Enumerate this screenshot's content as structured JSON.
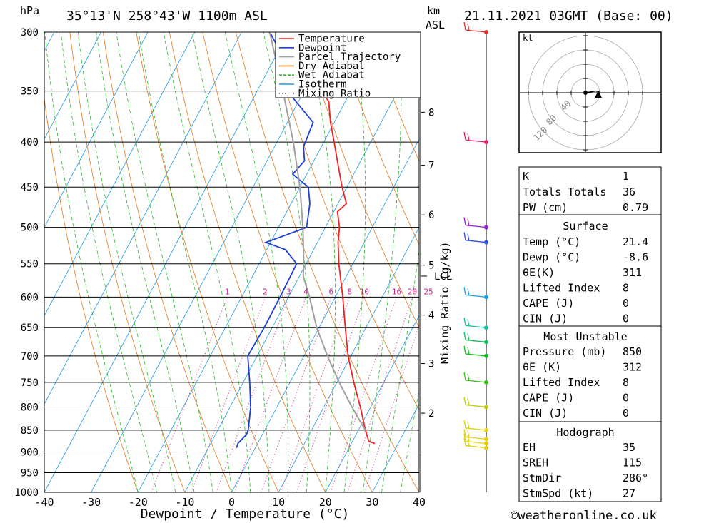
{
  "header": {
    "unit_left": "hPa",
    "location": "35°13'N 258°43'W 1100m ASL",
    "unit_km": "km",
    "unit_asl": "ASL",
    "datetime": "21.11.2021 03GMT (Base: 00)"
  },
  "chart_data": {
    "type": "line",
    "title": "35°13'N 258°43'W 1100m ASL",
    "xlabel": "Dewpoint / Temperature (°C)",
    "ylabel": "hPa",
    "xlim": [
      -40,
      40
    ],
    "ylim": [
      1000,
      300
    ],
    "y_scale": "log",
    "skew": true,
    "x_ticks": [
      "-40",
      "-30",
      "-20",
      "-10",
      "0",
      "10",
      "20",
      "30",
      "40"
    ],
    "pressure_ticks": [
      "300",
      "350",
      "400",
      "450",
      "500",
      "550",
      "600",
      "650",
      "700",
      "750",
      "800",
      "850",
      "900",
      "950",
      "1000"
    ],
    "km_ticks": [
      {
        "label": "2",
        "p": 813
      },
      {
        "label": "3",
        "p": 714
      },
      {
        "label": "4",
        "p": 629
      },
      {
        "label": "5",
        "p": 552
      },
      {
        "label": "6",
        "p": 484
      },
      {
        "label": "7",
        "p": 425
      },
      {
        "label": "8",
        "p": 370
      }
    ],
    "lcl": {
      "label": "LCL",
      "p": 568
    },
    "mixing_ratio_label": "Mixing Ratio (g/kg)",
    "mixing_ratio_values": [
      "1",
      "2",
      "3",
      "4",
      "6",
      "8",
      "10",
      "16",
      "20",
      "25"
    ],
    "legend": {
      "placement": "top-right",
      "entries": [
        {
          "name": "Temperature",
          "color": "#ee2222",
          "style": "solid"
        },
        {
          "name": "Dewpoint",
          "color": "#1f3fcf",
          "style": "solid"
        },
        {
          "name": "Parcel Trajectory",
          "color": "#a0a0a0",
          "style": "solid"
        },
        {
          "name": "Dry Adiabat",
          "color": "#e07a1f",
          "style": "solid"
        },
        {
          "name": "Wet Adiabat",
          "color": "#2fb82f",
          "style": "dashed"
        },
        {
          "name": "Isotherm",
          "color": "#1e9be0",
          "style": "solid"
        },
        {
          "name": "Mixing Ratio",
          "color": "#d02090",
          "style": "dotted"
        }
      ]
    },
    "series": [
      {
        "name": "Temperature",
        "color": "#ee2222",
        "points": [
          [
            880,
            25.0
          ],
          [
            875,
            23.5
          ],
          [
            850,
            21.5
          ],
          [
            800,
            17.8
          ],
          [
            750,
            13.6
          ],
          [
            700,
            9.4
          ],
          [
            650,
            5.6
          ],
          [
            600,
            1.6
          ],
          [
            550,
            -3.0
          ],
          [
            520,
            -5.6
          ],
          [
            500,
            -7.0
          ],
          [
            480,
            -9.2
          ],
          [
            470,
            -8.2
          ],
          [
            450,
            -11.0
          ],
          [
            420,
            -15.0
          ],
          [
            400,
            -17.8
          ],
          [
            380,
            -20.8
          ],
          [
            360,
            -23.5
          ],
          [
            340,
            -28.8
          ],
          [
            320,
            -34.0
          ],
          [
            300,
            -39.0
          ]
        ]
      },
      {
        "name": "Dewpoint",
        "color": "#1f3fcf",
        "points": [
          [
            890,
            -4.0
          ],
          [
            880,
            -4.2
          ],
          [
            860,
            -3.4
          ],
          [
            850,
            -3.5
          ],
          [
            800,
            -5.6
          ],
          [
            750,
            -8.6
          ],
          [
            700,
            -12.0
          ],
          [
            650,
            -11.7
          ],
          [
            600,
            -11.8
          ],
          [
            550,
            -12.0
          ],
          [
            530,
            -16.0
          ],
          [
            520,
            -21.0
          ],
          [
            500,
            -14.0
          ],
          [
            470,
            -16.0
          ],
          [
            450,
            -18.2
          ],
          [
            435,
            -23.0
          ],
          [
            420,
            -22.0
          ],
          [
            405,
            -23.8
          ],
          [
            380,
            -24.5
          ],
          [
            355,
            -32.0
          ],
          [
            330,
            -35.6
          ],
          [
            300,
            -44.0
          ]
        ]
      },
      {
        "name": "Parcel Trajectory",
        "color": "#a0a0a0",
        "points": [
          [
            850,
            21.5
          ],
          [
            800,
            16.0
          ],
          [
            750,
            10.5
          ],
          [
            700,
            5.0
          ],
          [
            650,
            -0.5
          ],
          [
            600,
            -5.5
          ],
          [
            568,
            -9.2
          ],
          [
            550,
            -10.5
          ],
          [
            500,
            -14.8
          ],
          [
            450,
            -20.0
          ],
          [
            400,
            -26.5
          ],
          [
            350,
            -34.5
          ],
          [
            300,
            -44.0
          ]
        ]
      }
    ],
    "hodograph": {
      "unit": "kt",
      "ring_labels": [
        "40",
        "80",
        "120"
      ],
      "points": [
        [
          0,
          0
        ],
        [
          6,
          -1
        ],
        [
          12,
          -2
        ],
        [
          16,
          -1
        ]
      ]
    },
    "wind_barbs": [
      {
        "p": 300,
        "color": "#e03030"
      },
      {
        "p": 400,
        "color": "#e0206e"
      },
      {
        "p": 500,
        "color": "#9020d0"
      },
      {
        "p": 520,
        "color": "#3050e0"
      },
      {
        "p": 600,
        "color": "#1ca0e0"
      },
      {
        "p": 650,
        "color": "#12c0a0"
      },
      {
        "p": 675,
        "color": "#12c060"
      },
      {
        "p": 700,
        "color": "#10c020"
      },
      {
        "p": 750,
        "color": "#38c010"
      },
      {
        "p": 800,
        "color": "#c0d010"
      },
      {
        "p": 850,
        "color": "#e0d010"
      },
      {
        "p": 870,
        "color": "#e0d010"
      },
      {
        "p": 880,
        "color": "#e0d010"
      },
      {
        "p": 890,
        "color": "#e0d010"
      }
    ]
  },
  "indices": [
    {
      "label": "K",
      "value": "1"
    },
    {
      "label": "Totals Totals",
      "value": "36"
    },
    {
      "label": "PW (cm)",
      "value": "0.79"
    }
  ],
  "surface": {
    "heading": "Surface",
    "rows": [
      {
        "label": "Temp (°C)",
        "value": "21.4"
      },
      {
        "label": "Dewp (°C)",
        "value": "-8.6"
      },
      {
        "label": "θE(K)",
        "value": "311"
      },
      {
        "label": "Lifted Index",
        "value": "8"
      },
      {
        "label": "CAPE (J)",
        "value": "0"
      },
      {
        "label": "CIN (J)",
        "value": "0"
      }
    ]
  },
  "most_unstable": {
    "heading": "Most Unstable",
    "rows": [
      {
        "label": "Pressure (mb)",
        "value": "850"
      },
      {
        "label": "θE (K)",
        "value": "312"
      },
      {
        "label": "Lifted Index",
        "value": "8"
      },
      {
        "label": "CAPE (J)",
        "value": "0"
      },
      {
        "label": "CIN (J)",
        "value": "0"
      }
    ]
  },
  "hodograph_table": {
    "heading": "Hodograph",
    "rows": [
      {
        "label": "EH",
        "value": "35"
      },
      {
        "label": "SREH",
        "value": "115"
      },
      {
        "label": "StmDir",
        "value": "286°"
      },
      {
        "label": "StmSpd (kt)",
        "value": "27"
      }
    ]
  },
  "footer": {
    "copyright": "©weatheronline.co.uk"
  }
}
